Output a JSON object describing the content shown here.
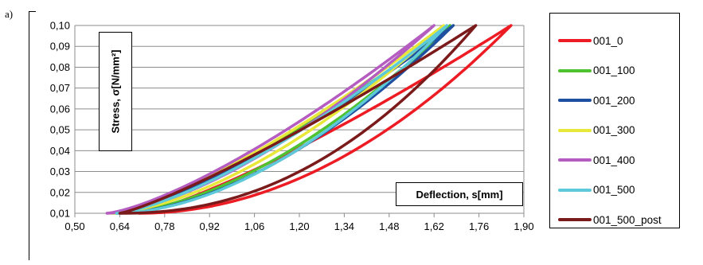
{
  "panel_label": "a)",
  "chart_data": {
    "type": "line",
    "title": "",
    "xlabel": "Deflection, s[mm]",
    "ylabel": "Stress, σ[N/mm²]",
    "xlim": [
      0.5,
      1.9
    ],
    "ylim": [
      0.01,
      0.1
    ],
    "x_ticks": [
      "0,50",
      "0,64",
      "0,78",
      "0,92",
      "1,06",
      "1,20",
      "1,34",
      "1,48",
      "1,62",
      "1,76",
      "1,90"
    ],
    "y_ticks": [
      "0,10",
      "0,09",
      "0,08",
      "0,07",
      "0,06",
      "0,05",
      "0,04",
      "0,03",
      "0,02",
      "0,01"
    ],
    "grid": "horizontal",
    "legend_position": "right",
    "series": [
      {
        "name": "001_0",
        "color": "#ed1c24",
        "x_min": 0.7,
        "x_max": 1.86,
        "load_exp": 2.0,
        "unload_exp": 1.25
      },
      {
        "name": "001_100",
        "color": "#4fc22f",
        "x_min": 0.62,
        "x_max": 1.67,
        "load_exp": 1.7,
        "unload_exp": 1.35
      },
      {
        "name": "001_200",
        "color": "#1f4fa0",
        "x_min": 0.63,
        "x_max": 1.68,
        "load_exp": 1.75,
        "unload_exp": 1.35
      },
      {
        "name": "001_300",
        "color": "#e8e83a",
        "x_min": 0.61,
        "x_max": 1.65,
        "load_exp": 1.6,
        "unload_exp": 1.35
      },
      {
        "name": "001_400",
        "color": "#b45cc0",
        "x_min": 0.6,
        "x_max": 1.62,
        "load_exp": 1.55,
        "unload_exp": 1.35
      },
      {
        "name": "001_500",
        "color": "#5ec9d9",
        "x_min": 0.63,
        "x_max": 1.66,
        "load_exp": 1.8,
        "unload_exp": 1.4
      },
      {
        "name": "001_500_post",
        "color": "#7b1a1a",
        "x_min": 0.64,
        "x_max": 1.75,
        "load_exp": 2.2,
        "unload_exp": 1.2
      }
    ]
  }
}
